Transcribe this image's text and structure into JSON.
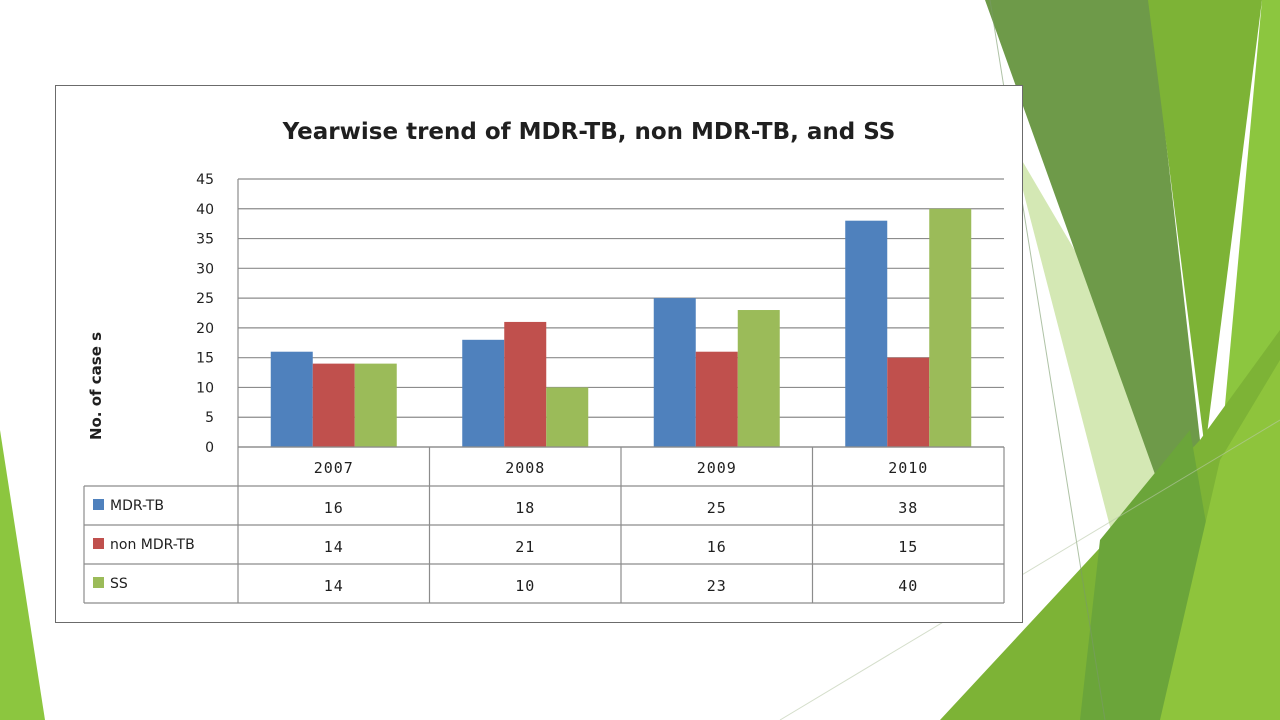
{
  "colors": {
    "mdr": "#4f81bd",
    "non_mdr": "#c0504d",
    "ss": "#9bbb59",
    "green_dark": "#6e9a49",
    "green_mid": "#7db336",
    "green_light": "#c8e0a0"
  },
  "chart_data": {
    "type": "bar",
    "title": "Yearwise trend of MDR-TB, non MDR-TB, and SS",
    "ylabel": "No. of case s",
    "xlabel": "",
    "categories": [
      "2007",
      "2008",
      "2009",
      "2010"
    ],
    "ylim": [
      0,
      45
    ],
    "yticks": [
      "0",
      "5",
      "10",
      "15",
      "20",
      "25",
      "30",
      "35",
      "40",
      "45"
    ],
    "grid": true,
    "legend": "data-table",
    "series": [
      {
        "name": "MDR-TB",
        "values": [
          16,
          18,
          25,
          38
        ],
        "color": "#4f81bd"
      },
      {
        "name": "non MDR-TB",
        "values": [
          14,
          21,
          16,
          15
        ],
        "color": "#c0504d"
      },
      {
        "name": "SS",
        "values": [
          14,
          10,
          23,
          40
        ],
        "color": "#9bbb59"
      }
    ]
  }
}
